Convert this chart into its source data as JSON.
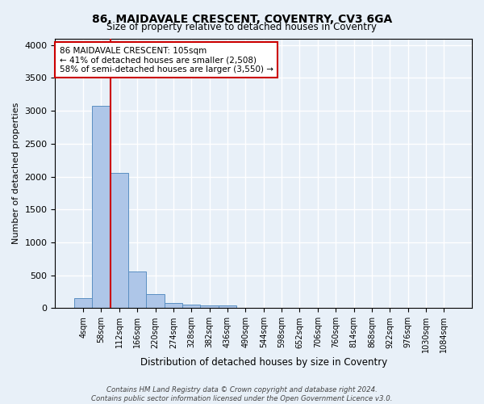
{
  "title": "86, MAIDAVALE CRESCENT, COVENTRY, CV3 6GA",
  "subtitle": "Size of property relative to detached houses in Coventry",
  "xlabel": "Distribution of detached houses by size in Coventry",
  "ylabel": "Number of detached properties",
  "bar_labels": [
    "4sqm",
    "58sqm",
    "112sqm",
    "166sqm",
    "220sqm",
    "274sqm",
    "328sqm",
    "382sqm",
    "436sqm",
    "490sqm",
    "544sqm",
    "598sqm",
    "652sqm",
    "706sqm",
    "760sqm",
    "814sqm",
    "868sqm",
    "922sqm",
    "976sqm",
    "1030sqm",
    "1084sqm"
  ],
  "bar_values": [
    150,
    3080,
    2060,
    560,
    220,
    75,
    55,
    45,
    45,
    0,
    0,
    0,
    0,
    0,
    0,
    0,
    0,
    0,
    0,
    0,
    0
  ],
  "bar_color": "#aec6e8",
  "bar_edge_color": "#5a8fc2",
  "ylim": [
    0,
    4100
  ],
  "yticks": [
    0,
    500,
    1000,
    1500,
    2000,
    2500,
    3000,
    3500,
    4000
  ],
  "vline_x": 1.5,
  "vline_color": "#cc0000",
  "annotation_text": "86 MAIDAVALE CRESCENT: 105sqm\n← 41% of detached houses are smaller (2,508)\n58% of semi-detached houses are larger (3,550) →",
  "annotation_box_color": "#ffffff",
  "annotation_edge_color": "#cc0000",
  "footer_text": "Contains HM Land Registry data © Crown copyright and database right 2024.\nContains public sector information licensed under the Open Government Licence v3.0.",
  "bg_color": "#e8f0f8",
  "grid_color": "#ffffff"
}
